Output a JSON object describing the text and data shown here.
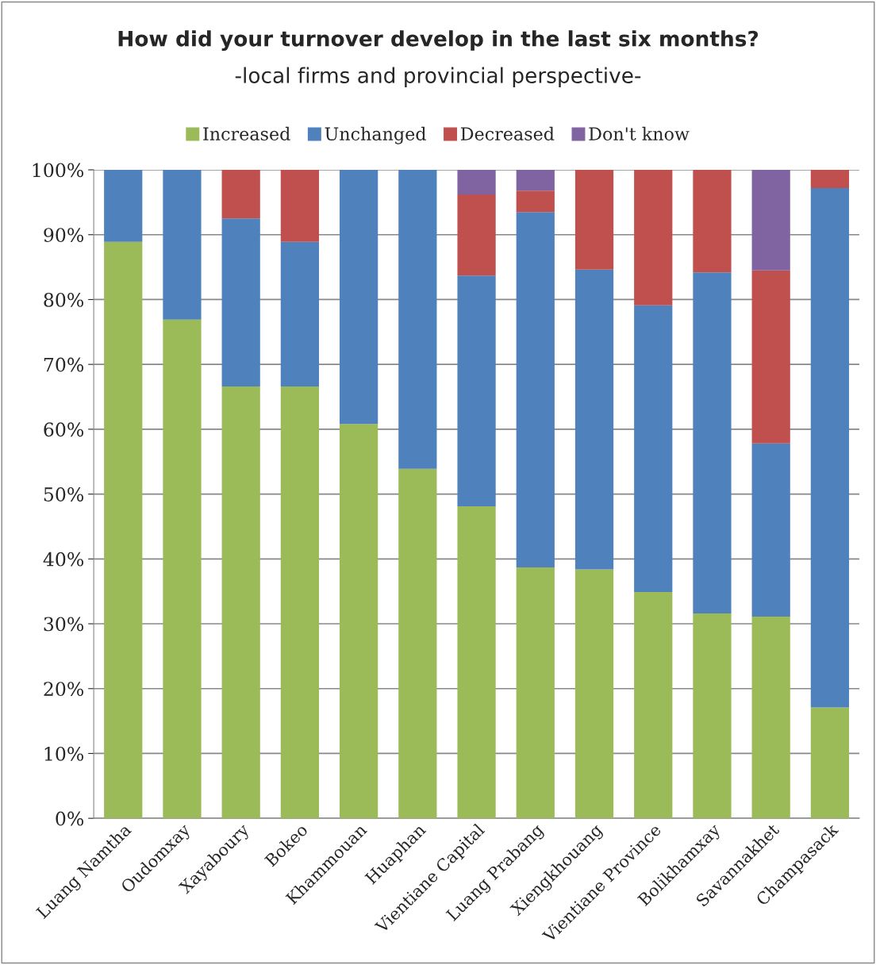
{
  "chart_data": {
    "type": "bar",
    "title": "How did your turnover develop in the last six months?",
    "subtitle": "-local firms and provincial perspective-",
    "categories": [
      "Luang Namtha",
      "Oudomxay",
      "Xayaboury",
      "Bokeo",
      "Khammouan",
      "Huaphan",
      "Vientiane Capital",
      "Luang Prabang",
      "Xiengkhouang",
      "Vientiane Province",
      "Bolikhamxay",
      "Savannakhet",
      "Champasack"
    ],
    "stacked": true,
    "series": [
      {
        "name": "Increased",
        "color": "#9bbb59",
        "values": [
          88.9,
          76.9,
          66.6,
          66.6,
          60.8,
          53.9,
          48.1,
          38.7,
          38.4,
          34.9,
          31.6,
          31.1,
          17.1
        ]
      },
      {
        "name": "Unchanged",
        "color": "#4f81bd",
        "values": [
          11.1,
          23.1,
          25.9,
          22.3,
          39.2,
          46.1,
          35.6,
          54.8,
          46.2,
          44.2,
          52.6,
          26.7,
          80.1
        ]
      },
      {
        "name": "Decreased",
        "color": "#c0504d",
        "values": [
          0,
          0,
          7.5,
          11.1,
          0,
          0,
          12.5,
          3.3,
          15.4,
          20.9,
          15.8,
          26.7,
          2.8
        ]
      },
      {
        "name": "Don't know",
        "color": "#8064a2",
        "values": [
          0,
          0,
          0,
          0,
          0,
          0,
          3.8,
          3.2,
          0,
          0,
          0,
          15.5,
          0
        ]
      }
    ],
    "ylim": [
      0,
      100
    ],
    "yticks": [
      {
        "value": 0,
        "label": "0%"
      },
      {
        "value": 10,
        "label": "10%"
      },
      {
        "value": 20,
        "label": "20%"
      },
      {
        "value": 30,
        "label": "30%"
      },
      {
        "value": 40,
        "label": "40%"
      },
      {
        "value": 50,
        "label": "50%"
      },
      {
        "value": 60,
        "label": "60%"
      },
      {
        "value": 70,
        "label": "70%"
      },
      {
        "value": 80,
        "label": "80%"
      },
      {
        "value": 90,
        "label": "90%"
      },
      {
        "value": 100,
        "label": "100%"
      }
    ],
    "grid": "y",
    "legend": "top"
  }
}
